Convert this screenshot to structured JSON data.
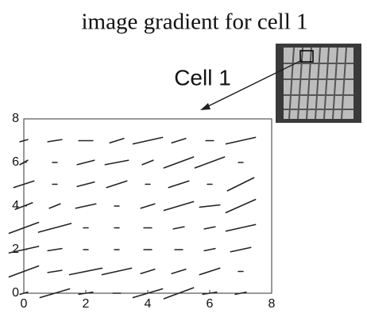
{
  "chart_data": {
    "type": "quiver",
    "title": "image gradient for cell 1",
    "annotation": "Cell 1",
    "x": [
      0,
      1,
      2,
      3,
      4,
      5,
      6,
      7,
      0,
      1,
      2,
      3,
      4,
      5,
      6,
      7,
      0,
      1,
      2,
      3,
      4,
      5,
      6,
      7,
      0,
      1,
      2,
      3,
      4,
      5,
      6,
      7,
      0,
      1,
      2,
      3,
      4,
      5,
      6,
      7,
      0,
      1,
      2,
      3,
      4,
      5,
      6,
      7,
      0,
      1,
      2,
      3,
      4,
      5,
      6,
      7,
      0,
      1,
      2,
      3,
      4,
      5,
      6,
      7
    ],
    "y": [
      7,
      7,
      7,
      7,
      7,
      7,
      7,
      7,
      6,
      6,
      6,
      6,
      6,
      6,
      6,
      6,
      5,
      5,
      5,
      5,
      5,
      5,
      5,
      5,
      4,
      4,
      4,
      4,
      4,
      4,
      4,
      4,
      3,
      3,
      3,
      3,
      3,
      3,
      3,
      3,
      2,
      2,
      2,
      2,
      2,
      2,
      2,
      2,
      1,
      1,
      1,
      1,
      1,
      1,
      1,
      1,
      0,
      0,
      0,
      0,
      0,
      0,
      0,
      0
    ],
    "u": [
      0.2,
      0.4,
      0.4,
      0.4,
      0.9,
      0.4,
      0.2,
      0.9,
      0.2,
      0.1,
      0.5,
      0.7,
      0.3,
      0.9,
      0.9,
      0.1,
      0.6,
      0.1,
      0.5,
      0.6,
      0.1,
      0.6,
      0.1,
      0.8,
      0.5,
      0.3,
      0.6,
      0.1,
      0.4,
      0.9,
      0.6,
      0.9,
      0.9,
      1.0,
      0.1,
      0.1,
      0.2,
      0.3,
      0.3,
      0.9,
      0.9,
      0.4,
      0.1,
      0.1,
      0.2,
      0.2,
      0.3,
      0.6,
      0.9,
      0.4,
      1.0,
      0.9,
      0.4,
      0.4,
      0.6,
      0.1,
      0.2,
      0.9,
      0.4,
      0.2,
      0.9,
      0.9,
      0.4,
      0.3
    ],
    "v": [
      0.1,
      0.1,
      0,
      0.2,
      0.3,
      0.2,
      0,
      0.3,
      0.2,
      0,
      0.2,
      0.2,
      0.2,
      0.5,
      0.5,
      0,
      0.3,
      0,
      0.2,
      0.3,
      0,
      0.3,
      0,
      0.6,
      0.3,
      0.2,
      0.2,
      0,
      0.2,
      0.4,
      0.1,
      0.6,
      0.5,
      0.4,
      0,
      0,
      0,
      0.1,
      0.1,
      0.3,
      0.3,
      0.1,
      0,
      0,
      0,
      0,
      0.1,
      0.2,
      0.5,
      0.1,
      0.3,
      0.3,
      0.2,
      0.2,
      0.3,
      0,
      0.1,
      0.4,
      0.1,
      0,
      0.4,
      0.5,
      0.1,
      0.1
    ],
    "xlim": [
      0,
      8
    ],
    "ylim": [
      0,
      8
    ],
    "xticks": [
      0,
      2,
      4,
      6,
      8
    ],
    "yticks": [
      0,
      2,
      4,
      6,
      8
    ],
    "color": "#222222"
  }
}
